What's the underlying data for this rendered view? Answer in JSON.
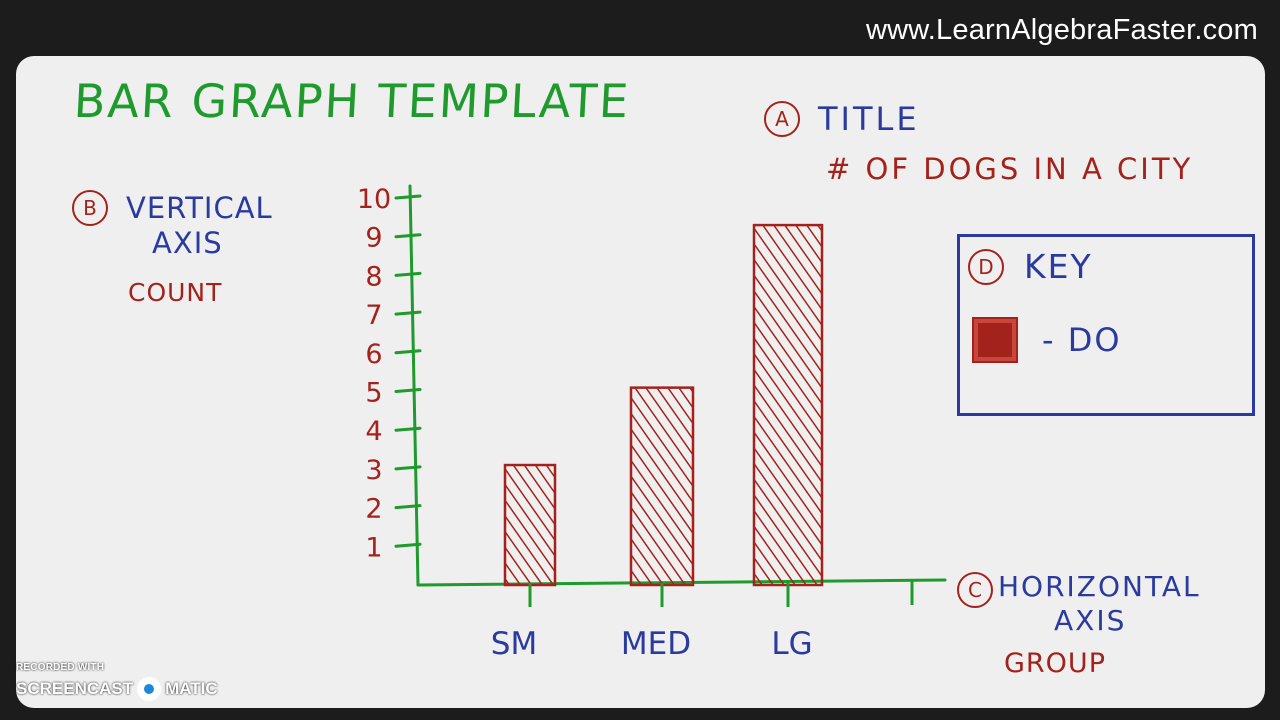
{
  "site": {
    "url": "www.LearnAlgebraFaster.com"
  },
  "heading": "BAR GRAPH TEMPLATE",
  "labels": {
    "title": {
      "marker": "A",
      "heading": "TITLE",
      "value": "# OF DOGS IN A CITY"
    },
    "vertical_axis": {
      "marker": "B",
      "heading_line1": "VERTICAL",
      "heading_line2": "AXIS",
      "value": "COUNT"
    },
    "horizontal_axis": {
      "marker": "C",
      "heading_line1": "HORIZONTAL",
      "heading_line2": "AXIS",
      "value": "GROUP"
    },
    "key": {
      "marker": "D",
      "heading": "KEY",
      "entry": "- DO"
    }
  },
  "colors": {
    "axis": "#1f9a2c",
    "bar": "#a3231c",
    "labels_blue": "#2a3a9e"
  },
  "chart_data": {
    "type": "bar",
    "categories": [
      "SM",
      "MED",
      "LG"
    ],
    "values": [
      3.1,
      5.1,
      9.3
    ],
    "yticks": [
      1,
      2,
      3,
      4,
      5,
      6,
      7,
      8,
      9,
      10
    ],
    "ylim": [
      0,
      10
    ],
    "title": "# OF DOGS IN A CITY",
    "xlabel": "GROUP",
    "ylabel": "COUNT",
    "grid": false,
    "legend": {
      "placement": "right",
      "entries": [
        "- DO"
      ]
    }
  },
  "watermark": {
    "top": "RECORDED WITH",
    "left": "SCREENCAST",
    "right": "MATIC"
  }
}
